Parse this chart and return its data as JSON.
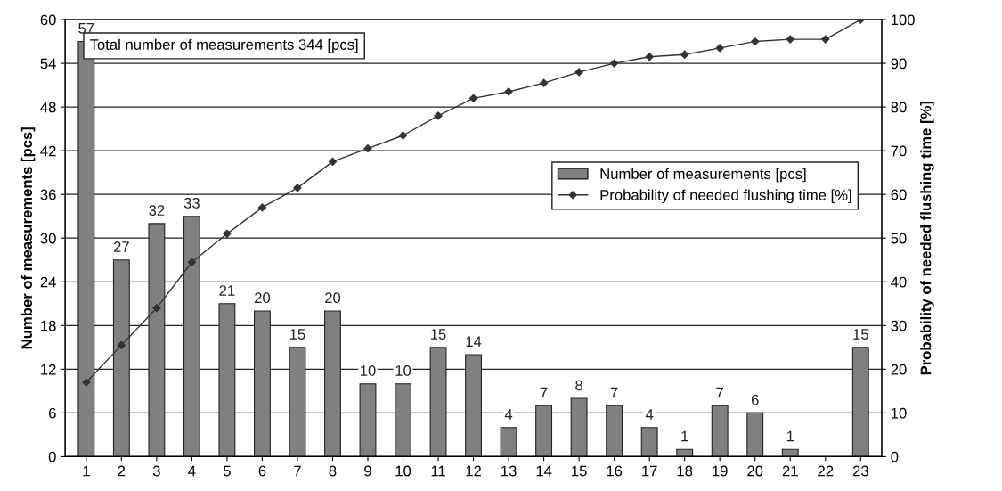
{
  "chart_data": {
    "type": "bar",
    "categories": [
      "1",
      "2",
      "3",
      "4",
      "5",
      "6",
      "7",
      "8",
      "9",
      "10",
      "11",
      "12",
      "13",
      "14",
      "15",
      "16",
      "17",
      "18",
      "19",
      "20",
      "21",
      "22",
      "23"
    ],
    "series": [
      {
        "name": "Number of measurements [pcs]",
        "color": "#808080",
        "values": [
          57,
          27,
          32,
          33,
          21,
          20,
          15,
          20,
          10,
          10,
          15,
          14,
          4,
          7,
          8,
          7,
          4,
          1,
          7,
          6,
          1,
          0,
          15
        ],
        "value_labels": [
          "57",
          "27",
          "32",
          "33",
          "21",
          "20",
          "15",
          "20",
          "10",
          "10",
          "15",
          "14",
          "4",
          "7",
          "8",
          "7",
          "4",
          "1",
          "7",
          "6",
          "1",
          null,
          "15"
        ]
      },
      {
        "name": "Probability of needed flushing time [%]",
        "type": "line",
        "axis": "y2",
        "color": "#333333",
        "marker": "diamond",
        "values": [
          17,
          25.5,
          34,
          44.5,
          51,
          57,
          61.5,
          67.5,
          70.5,
          73.5,
          78,
          82,
          83.5,
          85.5,
          88,
          90,
          91.5,
          92,
          93.5,
          95,
          95.5,
          95.5,
          100
        ]
      }
    ],
    "ylabel": "Number of measurements [pcs]",
    "y2label": "Probability of needed flushing time [%]",
    "ylim": [
      0,
      60
    ],
    "yticks": [
      0,
      6,
      12,
      18,
      24,
      30,
      36,
      42,
      48,
      54,
      60
    ],
    "y2lim": [
      0,
      100
    ],
    "y2ticks": [
      0,
      10,
      20,
      30,
      40,
      50,
      60,
      70,
      80,
      90,
      100
    ],
    "grid": "y",
    "legend": "right",
    "annotations": [
      "Total number of measurements 344 [pcs]"
    ]
  }
}
